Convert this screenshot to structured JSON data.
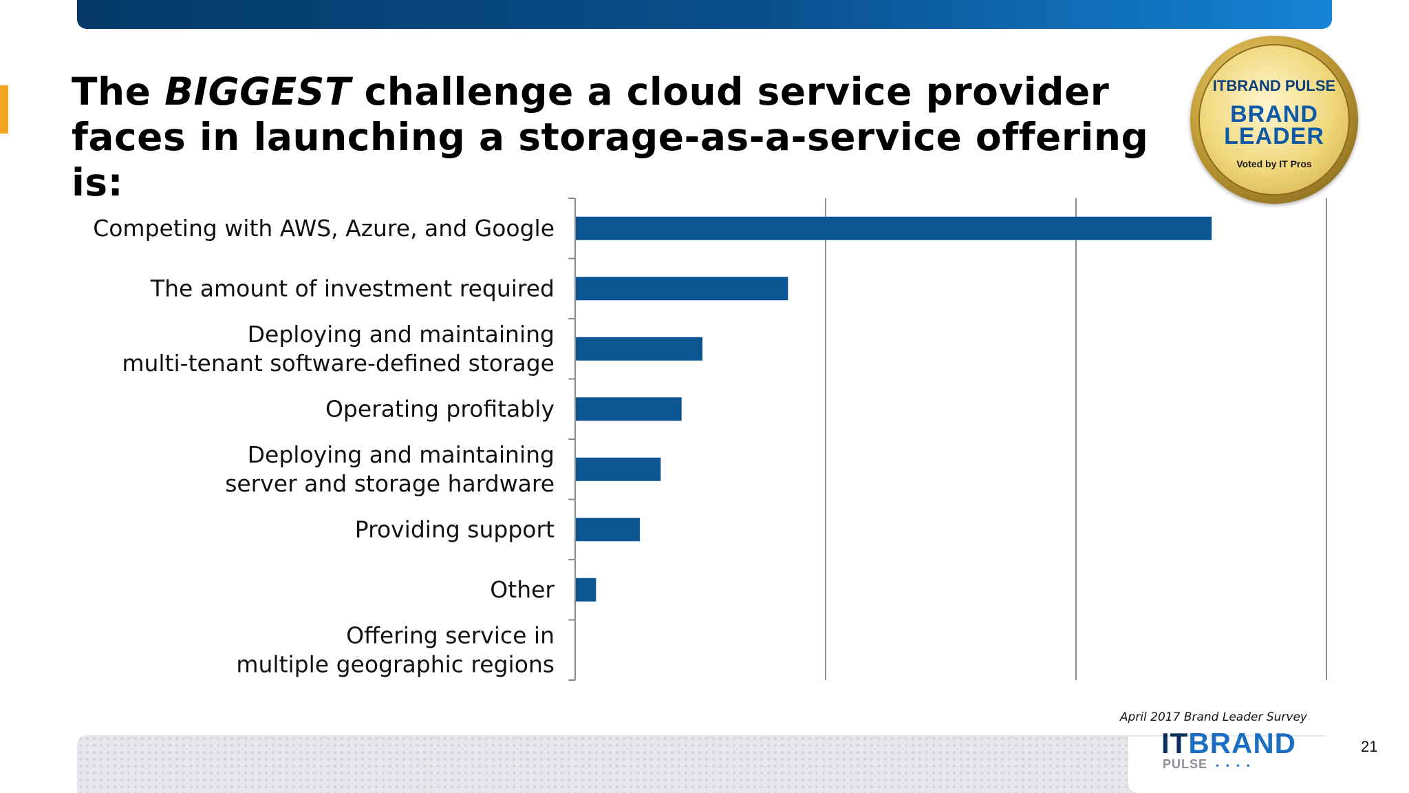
{
  "title": {
    "part1": "The ",
    "part2": "BIGGEST",
    "part3": " challenge a cloud service provider faces in launching a storage-as-a-service offering is:"
  },
  "badge": {
    "top_text": "ITBRAND PULSE",
    "main_line1": "BRAND",
    "main_line2": "LEADER",
    "sub_text": "Voted by IT Pros"
  },
  "chart_data": {
    "type": "bar",
    "orientation": "horizontal",
    "categories": [
      "Competing with AWS, Azure, and Google",
      "The amount of investment required",
      "Deploying and maintaining multi-tenant software-defined storage",
      "Operating profitably",
      "Deploying and maintaining server and storage hardware",
      "Providing support",
      "Other",
      "Offering service in multiple geographic regions"
    ],
    "category_lines": [
      [
        "Competing with AWS, Azure, and Google"
      ],
      [
        "The amount of investment required"
      ],
      [
        "Deploying and maintaining",
        "multi-tenant software-defined storage"
      ],
      [
        "Operating profitably"
      ],
      [
        "Deploying and maintaining",
        "server and storage hardware"
      ],
      [
        "Providing support"
      ],
      [
        "Other"
      ],
      [
        "Offering service in",
        "multiple geographic regions"
      ]
    ],
    "values": [
      30.5,
      10.2,
      6.1,
      5.1,
      4.1,
      3.1,
      1.0,
      0.0
    ],
    "xlim": [
      0,
      36
    ],
    "x_gridlines": [
      0,
      12,
      24,
      36
    ],
    "tick_labels_shown": false,
    "bar_color": "#0a5592",
    "grid": true
  },
  "footer": {
    "survey": "April 2017 Brand Leader Survey",
    "logo_it": "IT",
    "logo_brand": "BRAND",
    "logo_pulse": "PULSE",
    "page_number": "21"
  }
}
